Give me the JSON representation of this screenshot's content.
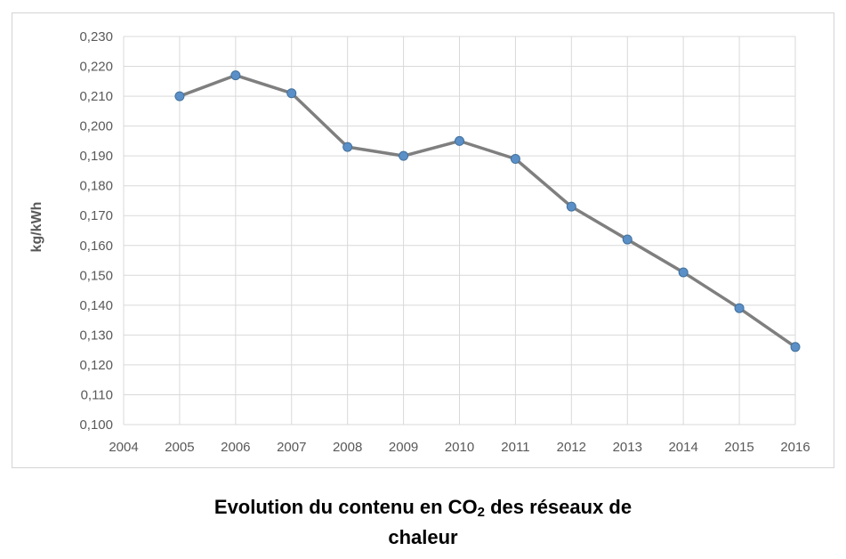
{
  "chart_data": {
    "type": "line",
    "title": "",
    "xlabel": "",
    "ylabel": "kg/kWh",
    "x": [
      2005,
      2006,
      2007,
      2008,
      2009,
      2010,
      2011,
      2012,
      2013,
      2014,
      2015,
      2016
    ],
    "series": [
      {
        "values": [
          0.21,
          0.217,
          0.211,
          0.193,
          0.19,
          0.195,
          0.189,
          0.173,
          0.162,
          0.151,
          0.139,
          0.126
        ]
      }
    ],
    "xlim": [
      2004,
      2016
    ],
    "ylim": [
      0.1,
      0.23
    ],
    "x_ticks": [
      "2004",
      "2005",
      "2006",
      "2007",
      "2008",
      "2009",
      "2010",
      "2011",
      "2012",
      "2013",
      "2014",
      "2015",
      "2016"
    ],
    "y_ticks": [
      "0,100",
      "0,110",
      "0,120",
      "0,130",
      "0,140",
      "0,150",
      "0,160",
      "0,170",
      "0,180",
      "0,190",
      "0,200",
      "0,210",
      "0,220",
      "0,230"
    ],
    "grid": true,
    "legend": "none",
    "colors": {
      "line": "#7f7f7f",
      "marker_fill": "#5b8fc7",
      "marker_stroke": "#41719c",
      "grid": "#d9d9d9"
    }
  },
  "caption": {
    "part1": "Evolution du contenu en CO",
    "subscript": "2",
    "part2": " des réseaux de",
    "line2": "chaleur"
  }
}
